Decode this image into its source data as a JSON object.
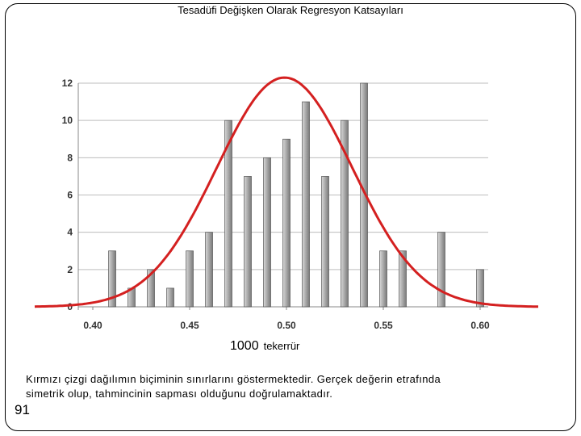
{
  "slide": {
    "title": "Tesadüfi Değişken Olarak Regresyon Katsayıları",
    "xlabel_number": "1000",
    "xlabel_word": "tekerrür",
    "caption_line1": "Kırmızı çizgi dağılımın biçiminin sınırlarını göstermektedir. Gerçek değerin etrafında",
    "caption_line2": "simetrik olup, tahmincinin sapması olduğunu doğrulamaktadır.",
    "page_number": "91"
  },
  "chart_data": {
    "type": "bar",
    "title": "Tesadüfi Değişken Olarak Regresyon Katsayıları",
    "xlabel": "1000 tekerrür",
    "ylabel": "",
    "xlim": [
      0.37,
      0.63
    ],
    "ylim": [
      0,
      12
    ],
    "x_ticks": [
      "0.40",
      "0.45",
      "0.50",
      "0.55",
      "0.60"
    ],
    "x_tick_values": [
      0.4,
      0.45,
      0.5,
      0.55,
      0.6
    ],
    "y_ticks": [
      0,
      2,
      4,
      6,
      8,
      10,
      12
    ],
    "grid": "horizontal",
    "bar_color": "#a8a8a8",
    "curve_color": "#d42020",
    "bars": [
      {
        "x": 0.41,
        "value": 3
      },
      {
        "x": 0.42,
        "value": 1
      },
      {
        "x": 0.43,
        "value": 2
      },
      {
        "x": 0.44,
        "value": 1
      },
      {
        "x": 0.45,
        "value": 3
      },
      {
        "x": 0.46,
        "value": 4
      },
      {
        "x": 0.47,
        "value": 10
      },
      {
        "x": 0.48,
        "value": 7
      },
      {
        "x": 0.49,
        "value": 8
      },
      {
        "x": 0.5,
        "value": 9
      },
      {
        "x": 0.51,
        "value": 11
      },
      {
        "x": 0.52,
        "value": 7
      },
      {
        "x": 0.53,
        "value": 10
      },
      {
        "x": 0.54,
        "value": 12
      },
      {
        "x": 0.55,
        "value": 3
      },
      {
        "x": 0.56,
        "value": 3
      },
      {
        "x": 0.58,
        "value": 4
      },
      {
        "x": 0.6,
        "value": 2
      }
    ],
    "curve": {
      "type": "normal",
      "mean": 0.499,
      "sd": 0.035,
      "peak": 12.3,
      "x_range": [
        0.37,
        0.63
      ]
    }
  }
}
